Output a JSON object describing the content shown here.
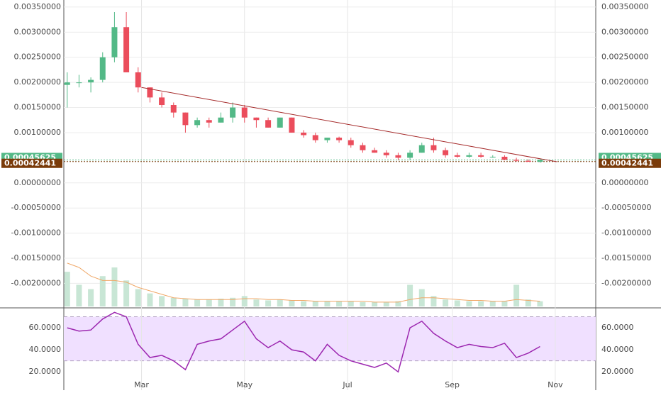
{
  "chart_data": {
    "type": "candlestick",
    "x": [
      16,
      23,
      30,
      37,
      44,
      51,
      58,
      65,
      72,
      79,
      86,
      93,
      100,
      107,
      114,
      121,
      128,
      135,
      142,
      149,
      156,
      163,
      170,
      177,
      184,
      191,
      198,
      205,
      212,
      219,
      226,
      233,
      240,
      247,
      254,
      261,
      268,
      275,
      282,
      289,
      296
    ],
    "open": [
      0.00195,
      0.002,
      0.002,
      0.00205,
      0.0025,
      0.0031,
      0.0022,
      0.0019,
      0.0017,
      0.00155,
      0.0014,
      0.00115,
      0.00125,
      0.0012,
      0.0013,
      0.0015,
      0.0013,
      0.00125,
      0.0011,
      0.0013,
      0.001,
      0.00095,
      0.00085,
      0.0009,
      0.00085,
      0.00075,
      0.00065,
      0.0006,
      0.00055,
      0.0005,
      0.0006,
      0.00075,
      0.00065,
      0.00055,
      0.00052,
      0.00055,
      0.00052,
      0.00052,
      0.00046,
      0.00044,
      0.00042
    ],
    "high": [
      0.0022,
      0.00215,
      0.0021,
      0.0026,
      0.0034,
      0.0034,
      0.0023,
      0.0019,
      0.0018,
      0.0016,
      0.0014,
      0.0013,
      0.0013,
      0.0014,
      0.0016,
      0.00155,
      0.0013,
      0.0013,
      0.0013,
      0.0013,
      0.00105,
      0.001,
      0.0009,
      0.00092,
      0.0009,
      0.0008,
      0.0007,
      0.00065,
      0.0006,
      0.00065,
      0.0008,
      0.0009,
      0.0007,
      0.0006,
      0.0006,
      0.0006,
      0.00055,
      0.00055,
      0.0005,
      0.00047,
      0.00047
    ],
    "low": [
      0.0015,
      0.0019,
      0.0018,
      0.002,
      0.0024,
      0.0022,
      0.0018,
      0.0016,
      0.0015,
      0.0013,
      0.001,
      0.0011,
      0.0011,
      0.0012,
      0.0012,
      0.0012,
      0.0011,
      0.0011,
      0.0011,
      0.001,
      0.0009,
      0.0008,
      0.0008,
      0.0008,
      0.0007,
      0.0006,
      0.0006,
      0.0005,
      0.00045,
      0.00045,
      0.0006,
      0.0006,
      0.0005,
      0.0005,
      0.0005,
      0.0005,
      0.0005,
      0.00045,
      0.00042,
      0.00042,
      0.0004
    ],
    "close": [
      0.002,
      0.002,
      0.00205,
      0.0025,
      0.0031,
      0.0022,
      0.0019,
      0.0017,
      0.00155,
      0.0014,
      0.00115,
      0.00125,
      0.0012,
      0.0013,
      0.0015,
      0.0013,
      0.00125,
      0.0011,
      0.0013,
      0.001,
      0.00095,
      0.00085,
      0.0009,
      0.00085,
      0.00075,
      0.00065,
      0.0006,
      0.00055,
      0.0005,
      0.0006,
      0.00075,
      0.00065,
      0.00055,
      0.00052,
      0.00055,
      0.00052,
      0.00052,
      0.00046,
      0.00044,
      0.00042,
      0.00045625
    ],
    "up_color": "#53b987",
    "down_color": "#eb4d5c",
    "grid": true,
    "xlim": [
      14,
      329
    ],
    "xticks": [
      {
        "value": 60,
        "label": "Mar"
      },
      {
        "value": 121,
        "label": "May"
      },
      {
        "value": 182,
        "label": "Jul"
      },
      {
        "value": 244,
        "label": "Sep"
      },
      {
        "value": 305,
        "label": "Nov"
      }
    ],
    "ylim": [
      -0.00246,
      0.00364
    ],
    "yticks": [
      {
        "value": 0.0035,
        "label": "0.00350000"
      },
      {
        "value": 0.003,
        "label": "0.00300000"
      },
      {
        "value": 0.0025,
        "label": "0.00250000"
      },
      {
        "value": 0.002,
        "label": "0.00200000"
      },
      {
        "value": 0.0015,
        "label": "0.00150000"
      },
      {
        "value": 0.001,
        "label": "0.00100000"
      },
      {
        "value": 0,
        "label": "0.00000000"
      },
      {
        "value": -0.0005,
        "label": "-0.00050000"
      },
      {
        "value": -0.001,
        "label": "-0.00100000"
      },
      {
        "value": -0.0015,
        "label": "-0.00150000"
      },
      {
        "value": -0.002,
        "label": "-0.00200000"
      }
    ],
    "price_labels": [
      {
        "value": 0.00045625,
        "label": "0.00045625",
        "color": "#53b987"
      },
      {
        "value": 0.00042441,
        "label": "0.00042441",
        "color": "#7a3b0a"
      }
    ],
    "trendline": {
      "x": [
        60,
        306
      ],
      "y": [
        0.0019,
        0.00042
      ],
      "color": "#a52a2a"
    },
    "volume": {
      "color": "#c8e6d5",
      "values": [
        40,
        25,
        20,
        35,
        45,
        30,
        20,
        15,
        12,
        10,
        9,
        8,
        8,
        9,
        10,
        12,
        8,
        7,
        8,
        7,
        6,
        6,
        6,
        6,
        6,
        5,
        5,
        5,
        6,
        25,
        20,
        12,
        8,
        7,
        6,
        6,
        6,
        6,
        25,
        8,
        6
      ]
    },
    "volume_ma": {
      "color": "#f0a868",
      "values": [
        50,
        45,
        35,
        30,
        30,
        28,
        22,
        18,
        14,
        10,
        9,
        8,
        8,
        8,
        8,
        9,
        9,
        8,
        8,
        7,
        7,
        6,
        6,
        6,
        6,
        6,
        5,
        5,
        5,
        8,
        10,
        10,
        9,
        8,
        7,
        7,
        6,
        6,
        8,
        7,
        6
      ]
    },
    "rsi": {
      "type": "line",
      "color": "#9c27b0",
      "band": [
        30,
        70
      ],
      "band_color": "#f0e0ff",
      "ylim": [
        3.4,
        76.8
      ],
      "yticks": [
        {
          "value": 60,
          "label": "60.0000"
        },
        {
          "value": 40,
          "label": "40.0000"
        },
        {
          "value": 20,
          "label": "20.0000"
        }
      ],
      "values": [
        60,
        57,
        58,
        68,
        74,
        70,
        45,
        33,
        35,
        30,
        22,
        45,
        48,
        50,
        58,
        66,
        50,
        42,
        48,
        40,
        38,
        30,
        45,
        35,
        30,
        27,
        24,
        28,
        20,
        60,
        66,
        55,
        48,
        42,
        45,
        43,
        42,
        46,
        33,
        37,
        43
      ]
    }
  }
}
